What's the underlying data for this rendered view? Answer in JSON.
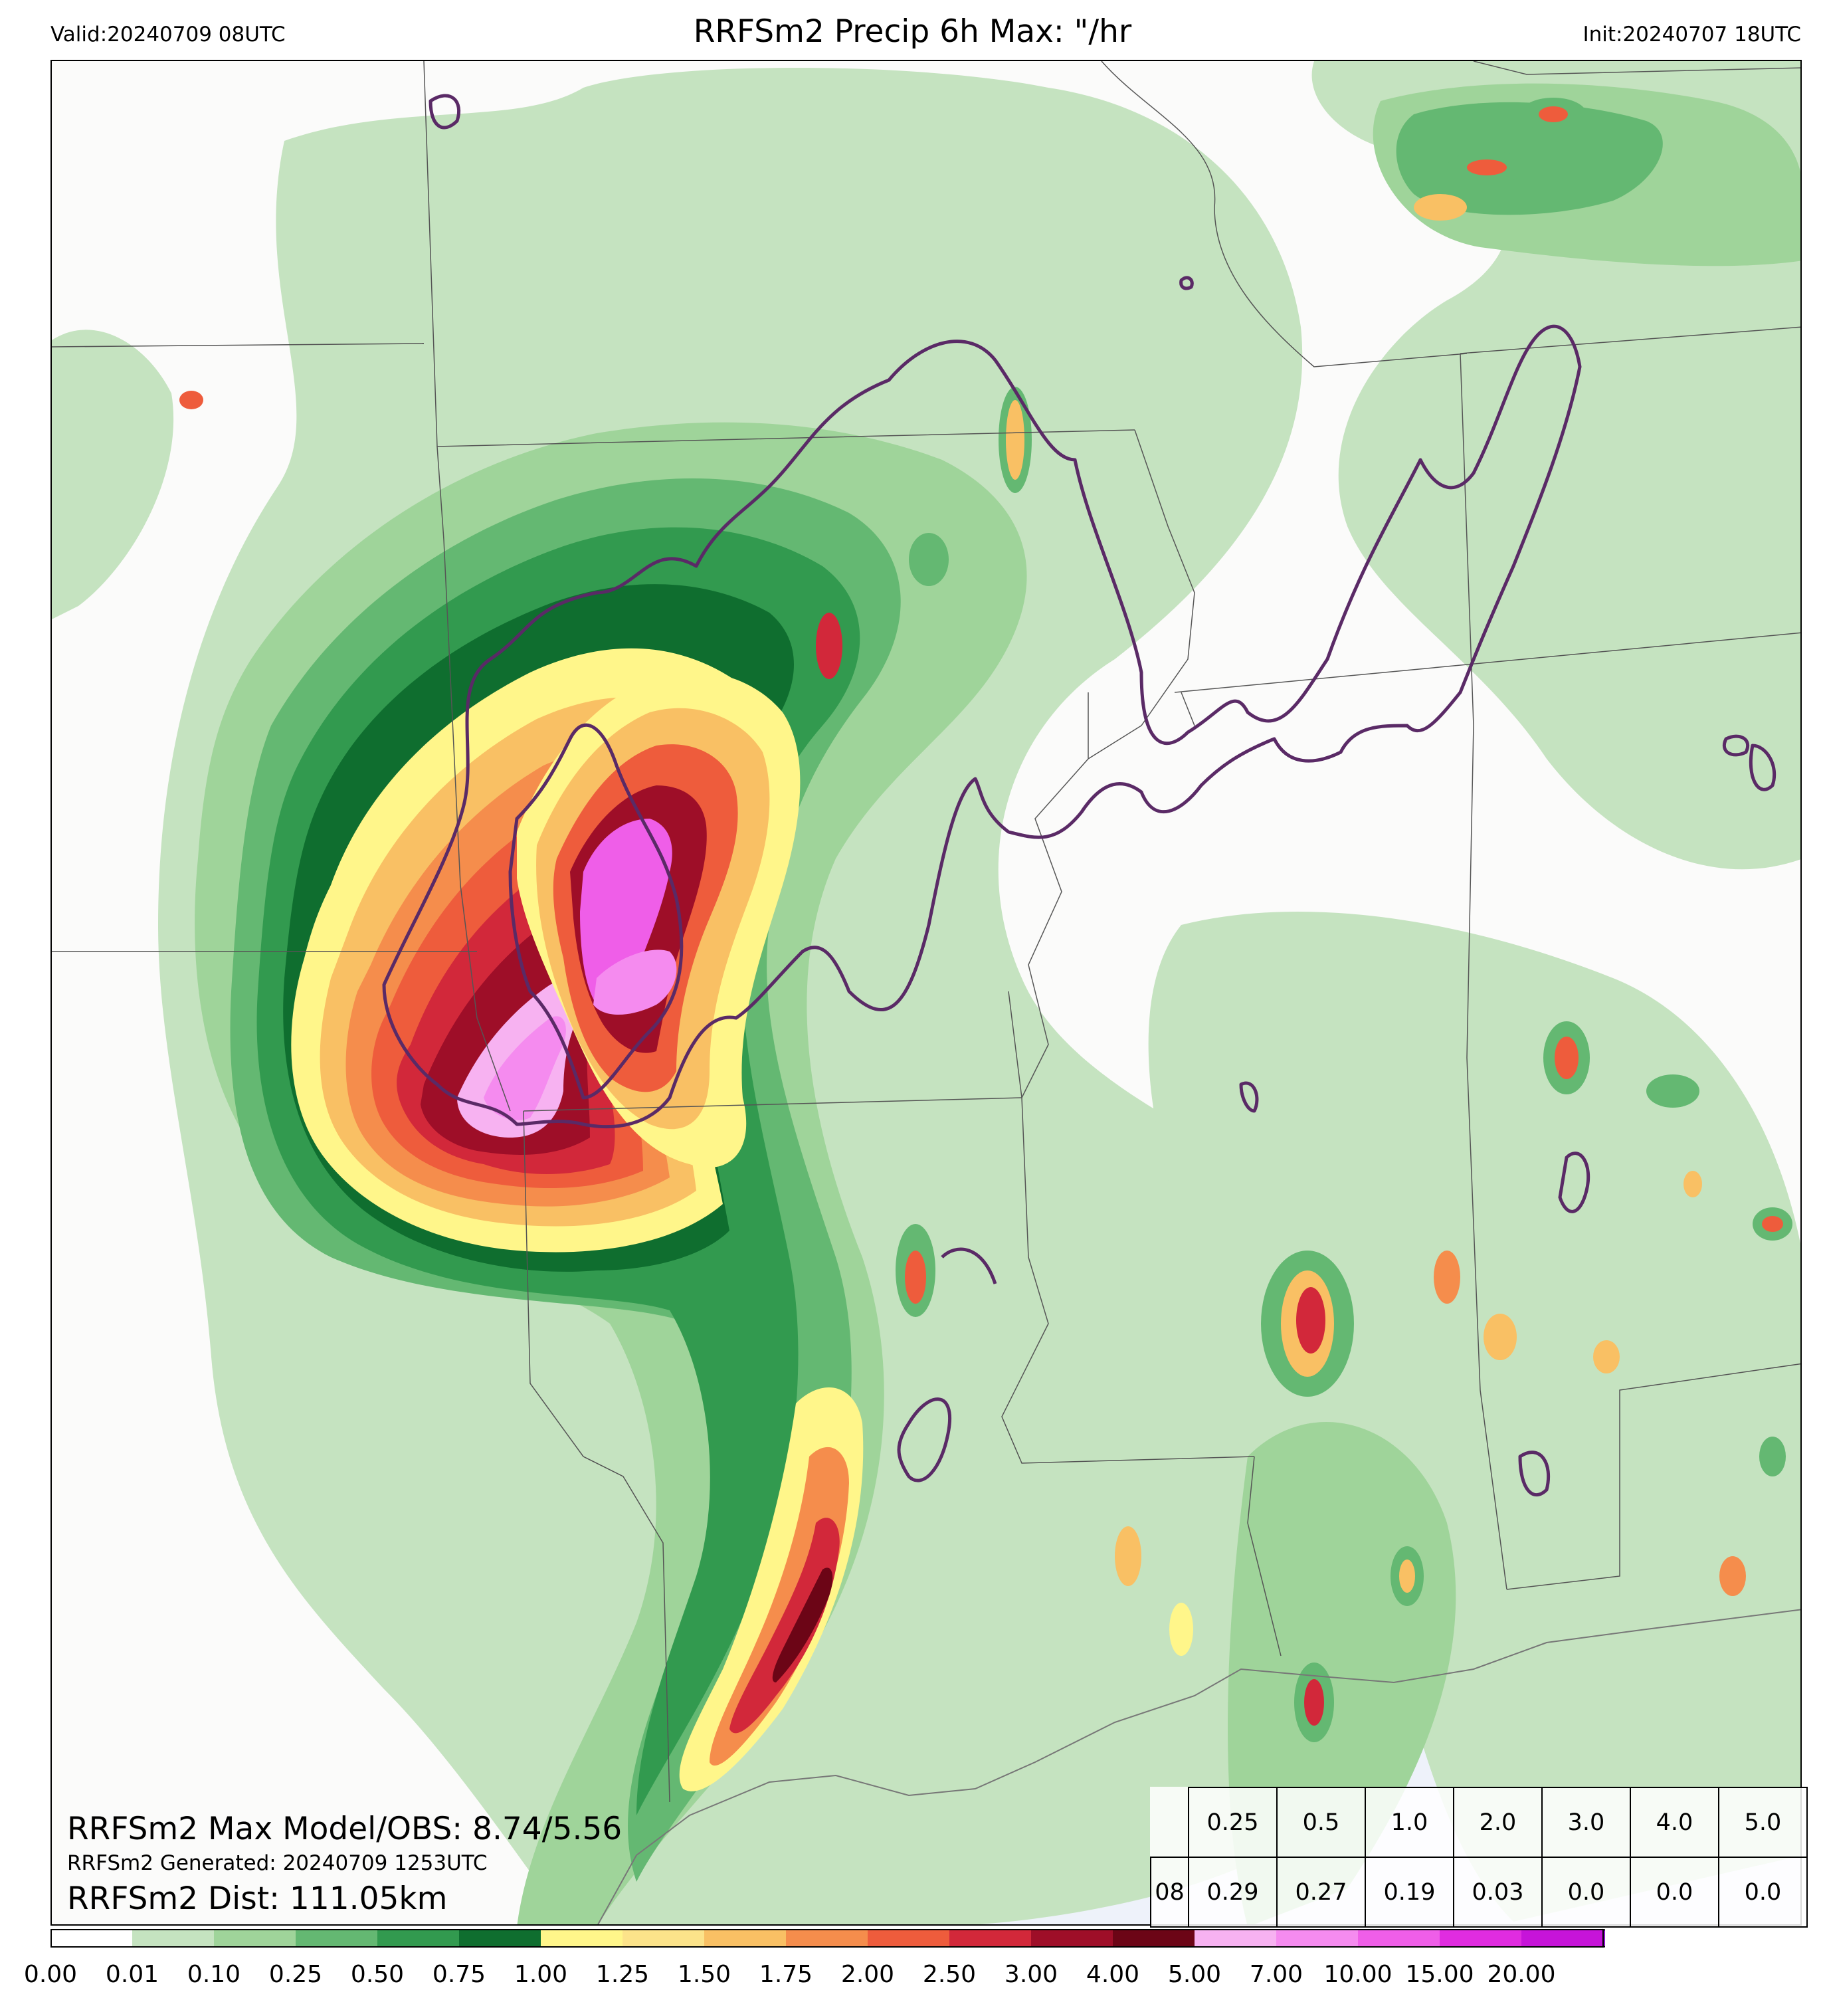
{
  "header": {
    "valid": "Valid:20240709 08UTC",
    "title": "RRFSm2 Precip 6h Max: \"/hr",
    "init": "Init:20240707 18UTC"
  },
  "info": {
    "max_line": "RRFSm2 Max Model/OBS: 8.74/5.56",
    "generated_line": "RRFSm2 Generated: 20240709 1253UTC",
    "dist_line": "RRFSm2 Dist: 111.05km"
  },
  "stats_table": {
    "thresholds": [
      "0.25",
      "0.5",
      "1.0",
      "2.0",
      "3.0",
      "4.0",
      "5.0"
    ],
    "hour": "08",
    "values": [
      "0.29",
      "0.27",
      "0.19",
      "0.03",
      "0.0",
      "0.0",
      "0.0"
    ]
  },
  "colorbar": {
    "ticks": [
      "0.00",
      "0.01",
      "0.10",
      "0.25",
      "0.50",
      "0.75",
      "1.00",
      "1.25",
      "1.50",
      "1.75",
      "2.00",
      "2.50",
      "3.00",
      "4.00",
      "5.00",
      "7.00",
      "10.00",
      "15.00",
      "20.00"
    ],
    "colors": [
      "#ffffff",
      "#c5e3c0",
      "#9fd49a",
      "#64b872",
      "#329a4f",
      "#0f6e2f",
      "#fff68a",
      "#fce38a",
      "#f9c064",
      "#f58d4c",
      "#ee5c3c",
      "#d2283a",
      "#9e0e28",
      "#6c0516",
      "#f7b2f1",
      "#f58bef",
      "#ef5ee8",
      "#e02ce0",
      "#c614d9",
      "#8d10c8"
    ],
    "extend_color": "#8d10c8"
  },
  "colors": {
    "ocean": "#eef2fa",
    "land": "#fbfbfa",
    "contour": "#5a2a66",
    "border": "#555555"
  }
}
